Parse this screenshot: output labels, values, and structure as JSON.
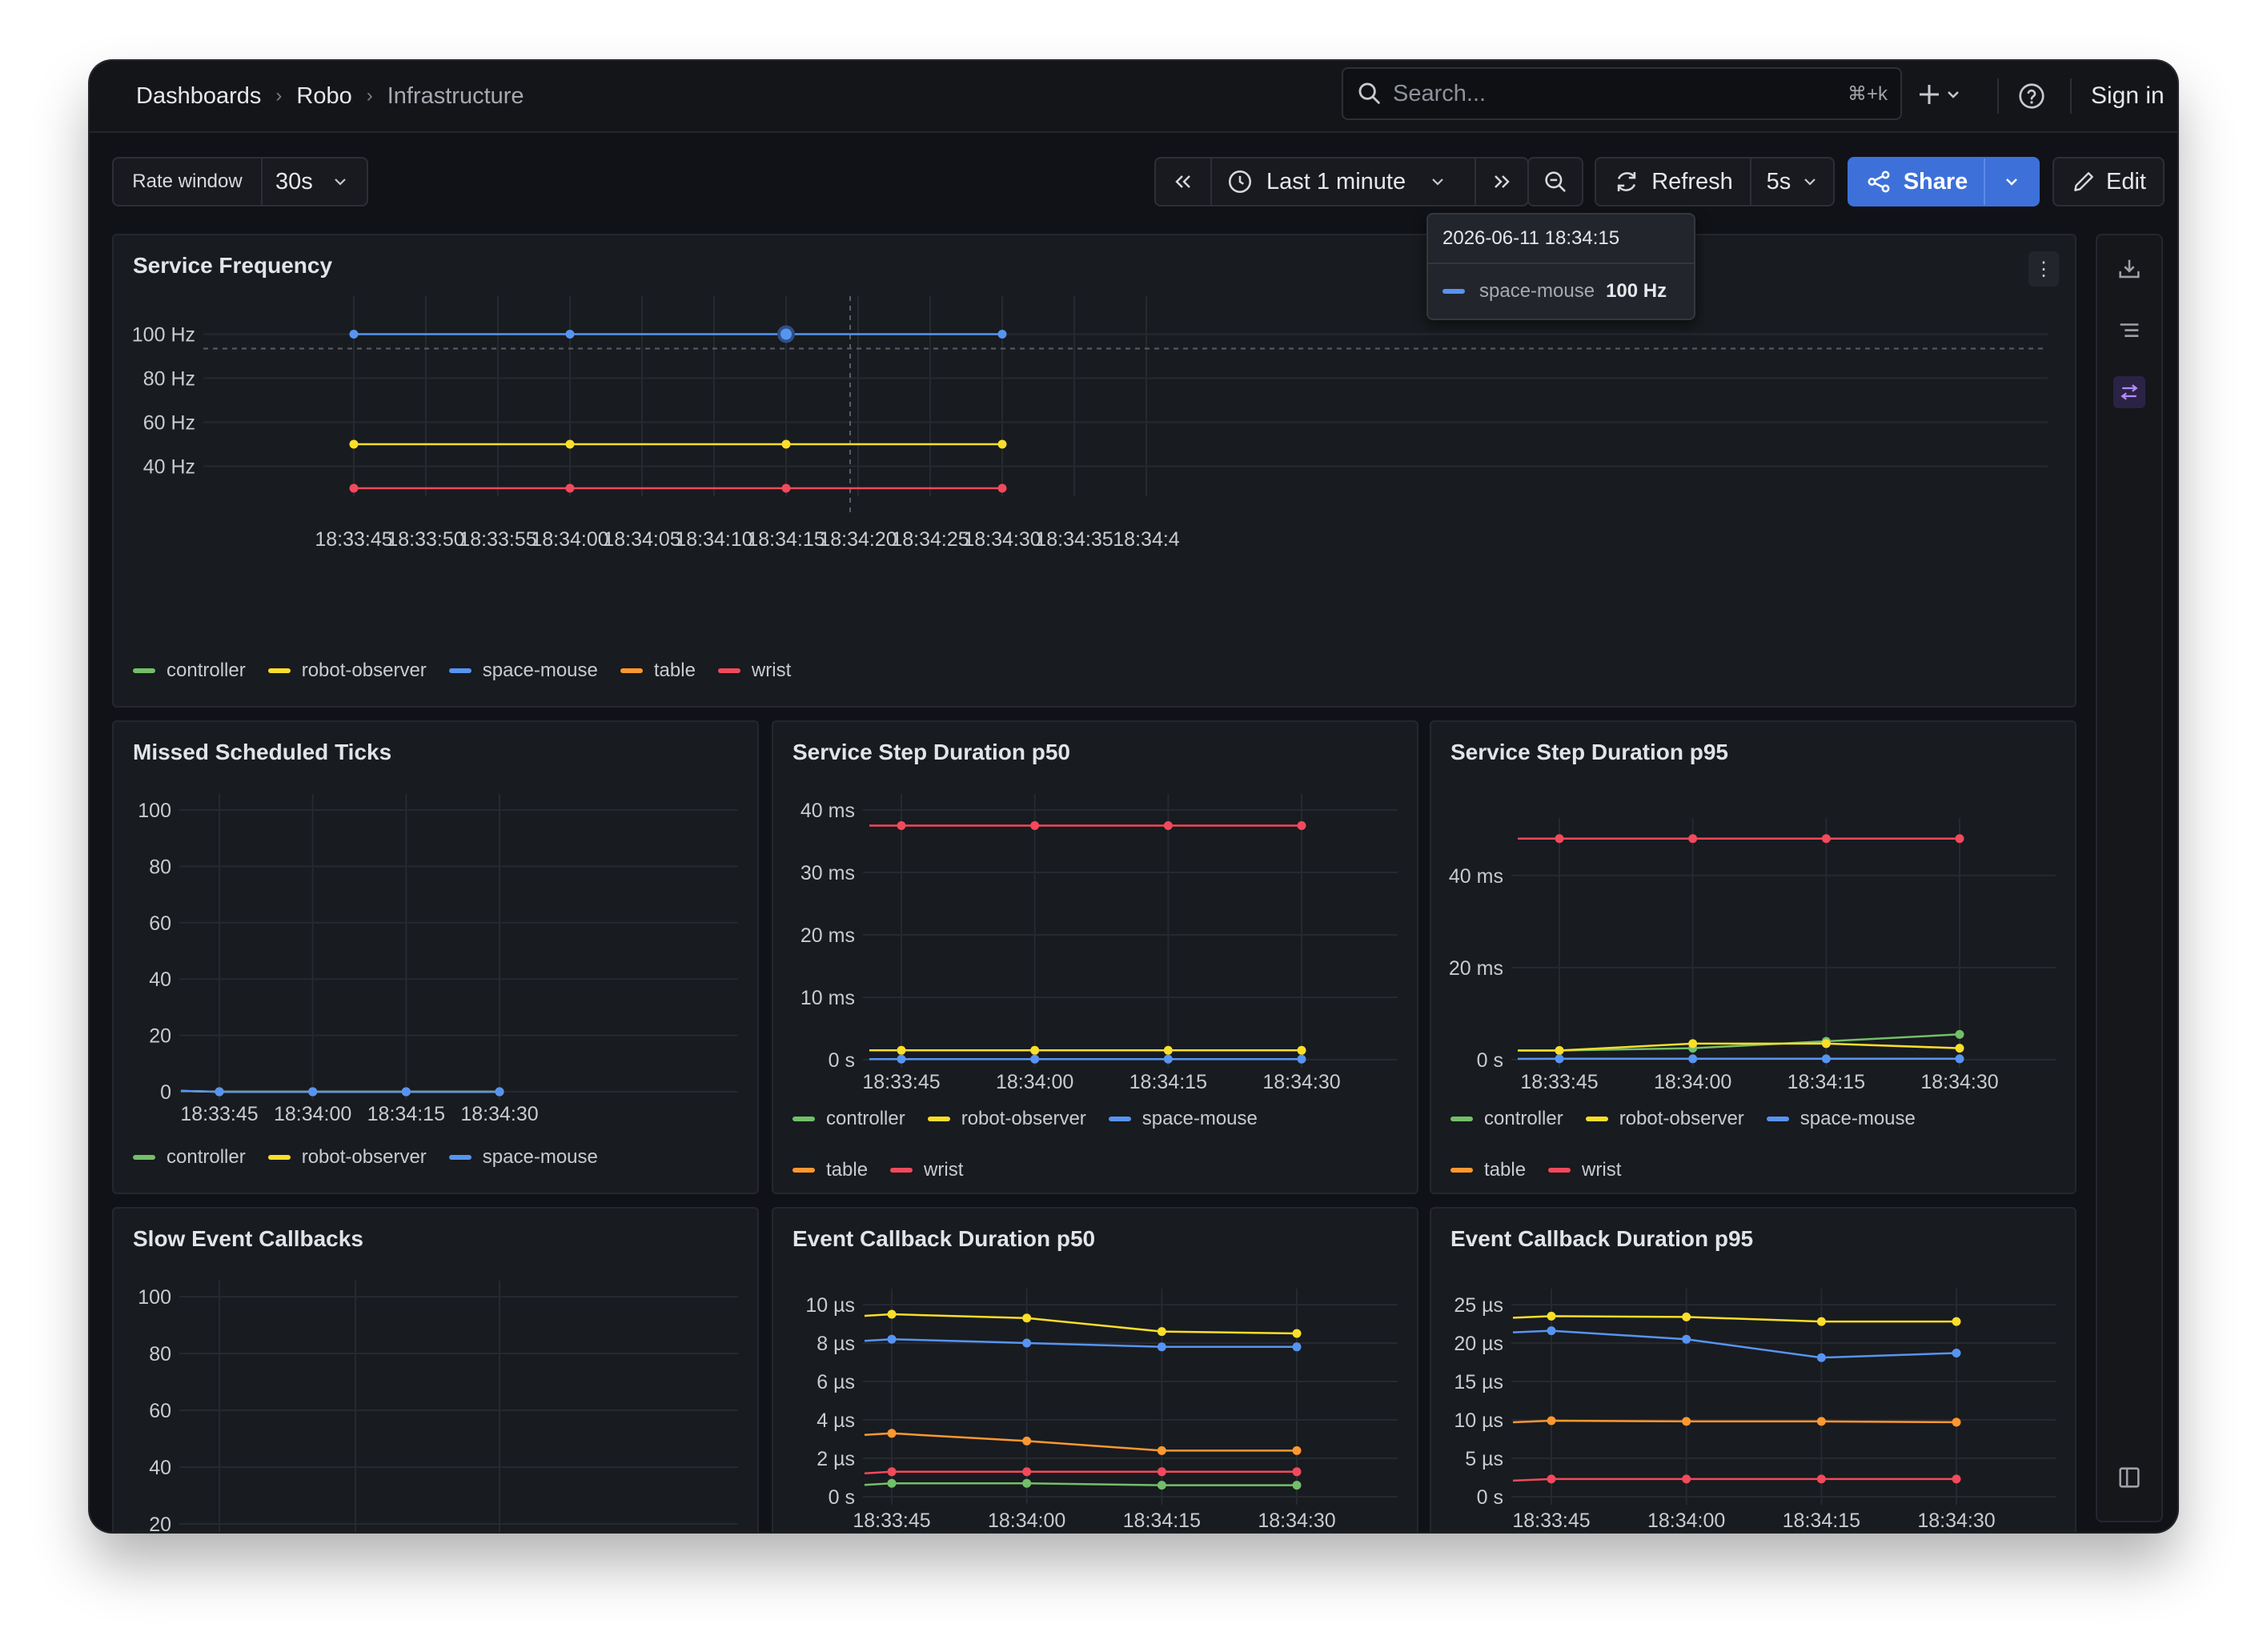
{
  "breadcrumbs": [
    "Dashboards",
    "Robo",
    "Infrastructure"
  ],
  "search": {
    "placeholder": "Search...",
    "shortcut": "⌘+k"
  },
  "header": {
    "sign_in": "Sign in"
  },
  "toolbar": {
    "rate_window_label": "Rate window",
    "rate_window_value": "30s",
    "time_range": "Last 1 minute",
    "refresh_label": "Refresh",
    "refresh_interval": "5s",
    "share_label": "Share",
    "edit_label": "Edit"
  },
  "colors": {
    "controller": "#73bf69",
    "robot-observer": "#fade2a",
    "space-mouse": "#5794f2",
    "table": "#ff9830",
    "wrist": "#f2495c",
    "accent": "#3d71d9"
  },
  "tooltip": {
    "time": "2026-06-11 18:34:15",
    "series": "space-mouse",
    "value": "100 Hz"
  },
  "chart_data": [
    {
      "id": "service_frequency",
      "title": "Service Frequency",
      "type": "line",
      "x_ticks": [
        "18:33:45",
        "18:33:50",
        "18:33:55",
        "18:34:00",
        "18:34:05",
        "18:34:10",
        "18:34:15",
        "18:34:20",
        "18:34:25",
        "18:34:30",
        "18:34:35",
        "18:34:4"
      ],
      "y_ticks": [
        "100 Hz",
        "80 Hz",
        "60 Hz",
        "40 Hz"
      ],
      "ylim": [
        30,
        110
      ],
      "x": [
        "18:33:45",
        "18:34:00",
        "18:34:15",
        "18:34:30"
      ],
      "legend": [
        "controller",
        "robot-observer",
        "space-mouse",
        "table",
        "wrist"
      ],
      "series": [
        {
          "name": "space-mouse",
          "values": [
            100,
            100,
            100,
            100
          ]
        },
        {
          "name": "robot-observer",
          "values": [
            50,
            50,
            50,
            50
          ]
        },
        {
          "name": "wrist",
          "values": [
            30,
            30,
            30,
            30
          ]
        }
      ]
    },
    {
      "id": "missed_ticks",
      "title": "Missed Scheduled Ticks",
      "type": "line",
      "x_ticks": [
        "18:33:45",
        "18:34:00",
        "18:34:15",
        "18:34:30"
      ],
      "y_ticks": [
        "100",
        "80",
        "60",
        "40",
        "20",
        "0"
      ],
      "ylim": [
        0,
        100
      ],
      "x": [
        "18:33:45",
        "18:34:00",
        "18:34:15",
        "18:34:30"
      ],
      "legend": [
        "controller",
        "robot-observer",
        "space-mouse"
      ],
      "series": [
        {
          "name": "controller",
          "values": [
            0,
            0,
            0,
            0
          ]
        },
        {
          "name": "robot-observer",
          "values": [
            0,
            0,
            0,
            0
          ]
        },
        {
          "name": "space-mouse",
          "values": [
            0,
            0,
            0,
            0
          ]
        }
      ]
    },
    {
      "id": "step_p50",
      "title": "Service Step Duration p50",
      "type": "line",
      "x_ticks": [
        "18:33:45",
        "18:34:00",
        "18:34:15",
        "18:34:30"
      ],
      "y_ticks": [
        "40 ms",
        "30 ms",
        "20 ms",
        "10 ms",
        "0 s"
      ],
      "ylim": [
        0,
        40
      ],
      "x": [
        "18:33:45",
        "18:34:00",
        "18:34:15",
        "18:34:30"
      ],
      "legend": [
        "controller",
        "robot-observer",
        "space-mouse",
        "table",
        "wrist"
      ],
      "series": [
        {
          "name": "wrist",
          "values": [
            37.5,
            37.5,
            37.5,
            37.5
          ]
        },
        {
          "name": "robot-observer",
          "values": [
            1.5,
            1.5,
            1.5,
            1.5
          ]
        },
        {
          "name": "space-mouse",
          "values": [
            0.1,
            0.1,
            0.1,
            0.1
          ]
        }
      ]
    },
    {
      "id": "step_p95",
      "title": "Service Step Duration p95",
      "type": "line",
      "x_ticks": [
        "18:33:45",
        "18:34:00",
        "18:34:15",
        "18:34:30"
      ],
      "y_ticks": [
        "40 ms",
        "20 ms",
        "0 s"
      ],
      "ylim": [
        0,
        49
      ],
      "x": [
        "18:33:45",
        "18:34:00",
        "18:34:15",
        "18:34:30"
      ],
      "legend": [
        "controller",
        "robot-observer",
        "space-mouse",
        "table",
        "wrist"
      ],
      "series": [
        {
          "name": "wrist",
          "values": [
            48,
            48,
            48,
            48
          ]
        },
        {
          "name": "controller",
          "values": [
            2,
            2.5,
            4,
            5.5
          ]
        },
        {
          "name": "robot-observer",
          "values": [
            2,
            3.5,
            3.5,
            2.5
          ]
        },
        {
          "name": "space-mouse",
          "values": [
            0.2,
            0.2,
            0.2,
            0.2
          ]
        }
      ]
    },
    {
      "id": "slow_callbacks",
      "title": "Slow Event Callbacks",
      "type": "line",
      "x_ticks": [],
      "y_ticks": [
        "100",
        "80",
        "60",
        "40",
        "20"
      ],
      "ylim": [
        20,
        100
      ],
      "legend": [],
      "series": []
    },
    {
      "id": "callback_p50",
      "title": "Event Callback Duration p50",
      "type": "line",
      "x_ticks": [
        "18:33:45",
        "18:34:00",
        "18:34:15",
        "18:34:30"
      ],
      "y_ticks": [
        "10 µs",
        "8 µs",
        "6 µs",
        "4 µs",
        "2 µs",
        "0 s"
      ],
      "ylim": [
        0,
        10
      ],
      "x": [
        "18:33:45",
        "18:34:00",
        "18:34:15",
        "18:34:30"
      ],
      "series": [
        {
          "name": "robot-observer",
          "values": [
            9.5,
            9.3,
            8.6,
            8.5
          ]
        },
        {
          "name": "space-mouse",
          "values": [
            8.2,
            8.0,
            7.8,
            7.8
          ]
        },
        {
          "name": "table",
          "values": [
            3.3,
            2.9,
            2.4,
            2.4
          ]
        },
        {
          "name": "wrist",
          "values": [
            1.3,
            1.3,
            1.3,
            1.3
          ]
        },
        {
          "name": "controller",
          "values": [
            0.7,
            0.7,
            0.6,
            0.6
          ]
        }
      ]
    },
    {
      "id": "callback_p95",
      "title": "Event Callback Duration p95",
      "type": "line",
      "x_ticks": [
        "18:33:45",
        "18:34:00",
        "18:34:15",
        "18:34:30"
      ],
      "y_ticks": [
        "25 µs",
        "20 µs",
        "15 µs",
        "10 µs",
        "5 µs",
        "0 s"
      ],
      "ylim": [
        0,
        25
      ],
      "x": [
        "18:33:45",
        "18:34:00",
        "18:34:15",
        "18:34:30"
      ],
      "series": [
        {
          "name": "robot-observer",
          "values": [
            23.5,
            23.4,
            22.8,
            22.8
          ]
        },
        {
          "name": "space-mouse",
          "values": [
            21.6,
            20.5,
            18.1,
            18.7
          ]
        },
        {
          "name": "table",
          "values": [
            9.9,
            9.8,
            9.8,
            9.7
          ]
        },
        {
          "name": "wrist",
          "values": [
            2.3,
            2.3,
            2.3,
            2.3
          ]
        }
      ]
    }
  ]
}
